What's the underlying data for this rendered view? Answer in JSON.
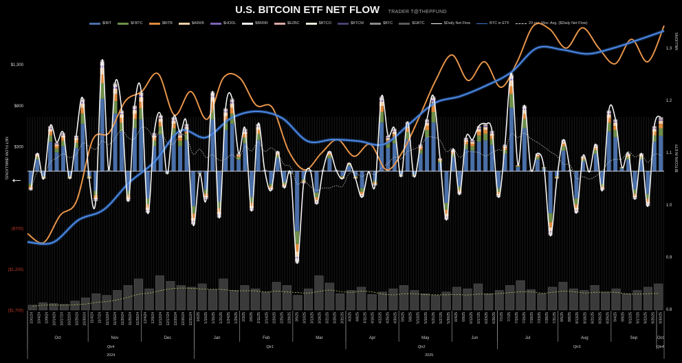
{
  "title": "U.S. BITCOIN ETF NET FLOW",
  "subtitle": "TRADER T@THEPFUND",
  "nav": {
    "back_icon": "left-arrow-icon"
  },
  "chart_data": {
    "type": "bar",
    "title": "U.S. BITCOIN ETF NET FLOW",
    "ylabel": "NET FLOW ($MILLIONS)",
    "y2label": "BITCOIN IN ETF",
    "y2unit": "MILLIONS",
    "ylim": [
      -1700,
      1300
    ],
    "y2lim": [
      0.8,
      1.3
    ],
    "yticks": [
      "$1,300",
      "$800",
      "$300",
      "($700)",
      "($1,200)",
      "($1,700)"
    ],
    "ytick_values": [
      1300,
      800,
      300,
      -700,
      -1200,
      -1700
    ],
    "y2ticks": [
      "1.3",
      "1.2",
      "1.1",
      "1.0",
      "0.9",
      "0.8"
    ],
    "y2tick_values": [
      1.3,
      1.2,
      1.1,
      1.0,
      0.9,
      0.8
    ],
    "legend_position": "top",
    "legend": [
      {
        "name": "$IBIT",
        "color": "#4a6fa8",
        "kind": "bar",
        "share": 0.65
      },
      {
        "name": "$FBTC",
        "color": "#6e8f4a",
        "kind": "bar",
        "share": 0.14
      },
      {
        "name": "$BITB",
        "color": "#e08a3c",
        "kind": "bar",
        "share": 0.08
      },
      {
        "name": "$ARKB",
        "color": "#f3cfa8",
        "kind": "bar",
        "share": 0.06
      },
      {
        "name": "$HODL",
        "color": "#7d62b5",
        "kind": "bar",
        "share": 0.02
      },
      {
        "name": "$BRRR",
        "color": "#f5f5f5",
        "kind": "bar",
        "share": 0.01
      },
      {
        "name": "$EZBC",
        "color": "#d9aaa6",
        "kind": "bar",
        "share": 0.01
      },
      {
        "name": "$BTCO",
        "color": "#eeeedd",
        "kind": "bar",
        "share": 0.01
      },
      {
        "name": "$BTCW",
        "color": "#4b3f70",
        "kind": "bar",
        "share": 0.005
      },
      {
        "name": "$BTC",
        "color": "#8a8a8a",
        "kind": "bar",
        "share": 0.005
      },
      {
        "name": "$GBTC",
        "color": "#5a5a5a",
        "kind": "bar",
        "share": 0.01
      },
      {
        "name": "$Daily Net Flow",
        "color": "#ffffff",
        "kind": "line"
      },
      {
        "name": "BTC in ETF",
        "color": "#3d7ad6",
        "kind": "line"
      },
      {
        "name": "20 per. Mov. Avg. ($Daily Net Flow)",
        "color": "#dddddd",
        "kind": "dashed"
      }
    ],
    "daily_net_flow": [
      -235,
      218,
      -92,
      554,
      353,
      470,
      -92,
      437,
      890,
      -92,
      -370,
      1361,
      17,
      1084,
      748,
      -370,
      806,
      974,
      -512,
      470,
      689,
      -34,
      664,
      470,
      580,
      -655,
      -34,
      -344,
      974,
      -571,
      773,
      890,
      218,
      521,
      -487,
      580,
      17,
      -235,
      244,
      -202,
      -34,
      -1126,
      -151,
      17,
      -403,
      17,
      244,
      17,
      -92,
      101,
      -92,
      -319,
      -8,
      -176,
      915,
      437,
      521,
      -67,
      605,
      -67,
      328,
      638,
      915,
      160,
      -596,
      269,
      -286,
      412,
      386,
      554,
      580,
      496,
      -319,
      328,
      1193,
      76,
      806,
      17,
      218,
      50,
      -790,
      -92,
      386,
      17,
      -512,
      185,
      -8,
      328,
      -235,
      748,
      638,
      50,
      218,
      -344,
      218,
      -428,
      554,
      664
    ],
    "btc_in_etf_millions": [
      0.929,
      0.928,
      0.971,
      0.991,
      1.043,
      1.083,
      1.142,
      1.129,
      1.166,
      1.179,
      1.166,
      1.122,
      1.125,
      1.122,
      1.116,
      1.155,
      1.195,
      1.208,
      1.228,
      1.254,
      1.3,
      1.297,
      1.289,
      1.3,
      1.316,
      1.333
    ],
    "orange_series": [
      0.945,
      0.928,
      0.98,
      1.007,
      1.125,
      1.138,
      1.199,
      1.217,
      1.251,
      1.172,
      1.217,
      1.164,
      1.243,
      1.243,
      1.191,
      1.186,
      1.103,
      1.067,
      1.099,
      1.125,
      1.093,
      1.116,
      1.067,
      1.103,
      1.168,
      1.238,
      1.287,
      1.238,
      1.274,
      1.225,
      1.274,
      1.343,
      1.336,
      1.3,
      1.339,
      1.3,
      1.27,
      1.317,
      1.274,
      1.343
    ],
    "bottom_bars": [
      60,
      90,
      80,
      70,
      110,
      150,
      200,
      180,
      240,
      300,
      380,
      260,
      420,
      350,
      300,
      280,
      320,
      250,
      380,
      240,
      300,
      260,
      220,
      340,
      300,
      180,
      260,
      420,
      330,
      200,
      240,
      280,
      190,
      220,
      260,
      300,
      240,
      200,
      180,
      220,
      280,
      260,
      320,
      200,
      240,
      300,
      360,
      250,
      200,
      280,
      340,
      260,
      240,
      300,
      220,
      260,
      200,
      240,
      280,
      320
    ],
    "x_ticks": [
      "10/1/24",
      "10/4/24",
      "10/9/24",
      "10/14/24",
      "10/17/24",
      "10/22/24",
      "10/25/24",
      "10/30/24",
      "11/4/24",
      "11/7/24",
      "11/12/24",
      "11/15/24",
      "11/20/24",
      "11/25/24",
      "11/29/24",
      "12/4/24",
      "12/9/24",
      "12/12/24",
      "12/17/24",
      "12/20/24",
      "12/26/24",
      "12/31/24",
      "1/6/25",
      "1/10/25",
      "1/15/25",
      "1/21/25",
      "1/24/25",
      "1/29/25",
      "2/3/25",
      "2/6/25",
      "2/11/25",
      "2/14/25",
      "2/20/25",
      "2/25/25",
      "2/28/25",
      "3/5/25",
      "3/10/25",
      "3/13/25",
      "3/18/25",
      "3/21/25",
      "3/26/25",
      "3/31/25",
      "4/3/25",
      "4/8/25",
      "4/11/25",
      "4/16/25",
      "4/22/25",
      "4/25/25",
      "4/30/25",
      "5/5/25",
      "5/8/25",
      "5/13/25",
      "5/16/25",
      "5/21/25",
      "5/27/25",
      "5/30/25",
      "6/4/25",
      "6/9/25",
      "6/12/25",
      "6/17/25",
      "6/23/25",
      "6/26/25",
      "7/1/25",
      "7/7/25",
      "7/10/25",
      "7/15/25",
      "7/18/25",
      "7/23/25",
      "7/28/25",
      "7/31/25",
      "8/5/25",
      "8/8/25",
      "8/13/25",
      "8/18/25",
      "8/21/25",
      "8/26/25",
      "8/29/25",
      "9/4/25",
      "9/9/25",
      "9/12/25",
      "9/17/25",
      "9/22/25",
      "9/25/25",
      "9/30/25"
    ],
    "months": [
      {
        "label": "Oct",
        "ticks": 8
      },
      {
        "label": "Nov",
        "ticks": 7
      },
      {
        "label": "Dec",
        "ticks": 7
      },
      {
        "label": "Jan",
        "ticks": 6
      },
      {
        "label": "Feb",
        "ticks": 7
      },
      {
        "label": "Mar",
        "ticks": 7
      },
      {
        "label": "Apr",
        "ticks": 7
      },
      {
        "label": "May",
        "ticks": 7
      },
      {
        "label": "Jun",
        "ticks": 6
      },
      {
        "label": "Jul",
        "ticks": 8
      },
      {
        "label": "Aug",
        "ticks": 7
      },
      {
        "label": "Sep",
        "ticks": 6
      },
      {
        "label": "Oct",
        "ticks": 1
      }
    ],
    "quarters": [
      {
        "label": "Qtr4",
        "months": 3
      },
      {
        "label": "Qtr1",
        "months": 3
      },
      {
        "label": "Qtr2",
        "months": 3
      },
      {
        "label": "Qtr3",
        "months": 3
      },
      {
        "label": "Qtr4",
        "months": 1
      }
    ],
    "years": [
      {
        "label": "2024",
        "months": 3
      },
      {
        "label": "2025",
        "months": 10
      }
    ]
  }
}
